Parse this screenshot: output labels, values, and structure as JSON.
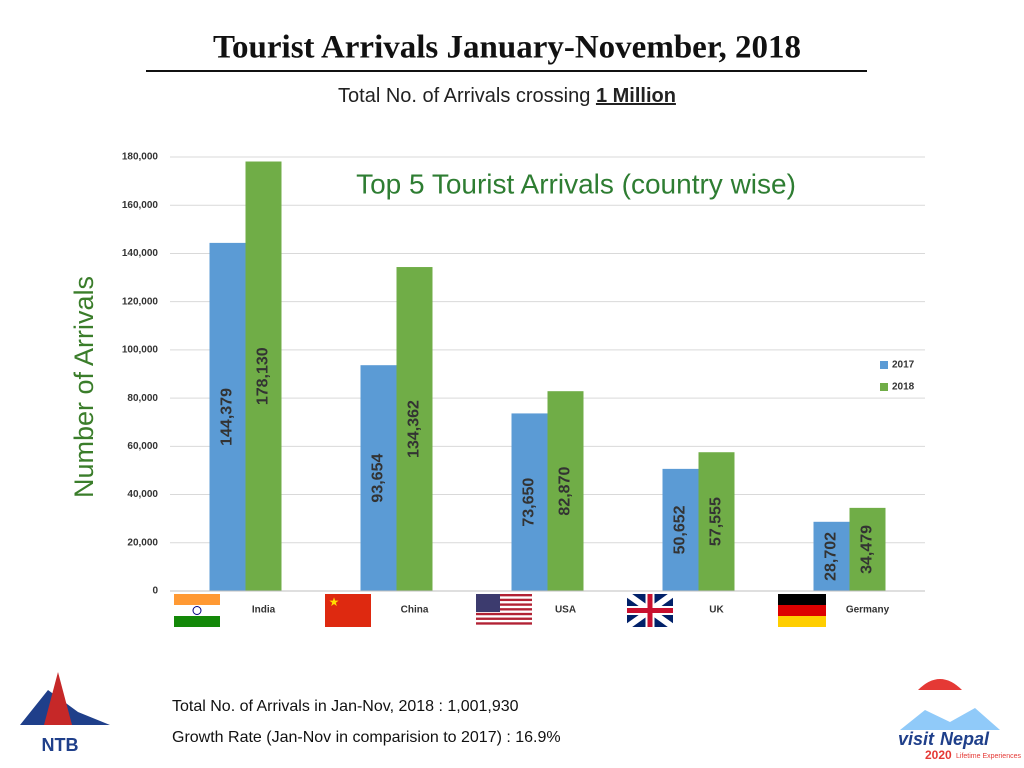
{
  "chart_data": {
    "type": "bar",
    "title": "Tourist Arrivals January-November, 2018",
    "subtitle": "Total No. of Arrivals crossing",
    "subtitle_emphasis": "1 Million",
    "chart_title": "Top 5 Tourist Arrivals (country wise)",
    "y_label": "Number of Arrivals",
    "categories": [
      "India",
      "China",
      "USA",
      "UK",
      "Germany"
    ],
    "series": [
      {
        "name": "2017",
        "color": "#5b9bd5",
        "values": [
          144379,
          93654,
          73650,
          50652,
          28702
        ],
        "value_labels": [
          "144,379",
          "93,654",
          "73,650",
          "50,652",
          "28,702"
        ]
      },
      {
        "name": "2018",
        "color": "#70ad47",
        "values": [
          178130,
          134362,
          82870,
          57555,
          34479
        ],
        "value_labels": [
          "178,130",
          "134,362",
          "82,870",
          "57,555",
          "34,479"
        ]
      }
    ],
    "ylim": [
      0,
      180000
    ],
    "yticks": [
      0,
      {
        "value": 20000,
        "label": "20,000"
      },
      {
        "value": 40000,
        "label": "40,000"
      },
      {
        "value": 60000,
        "label": "60,000"
      },
      {
        "value": 80000,
        "label": "80,000"
      },
      {
        "value": 100000,
        "label": "100,000"
      },
      {
        "value": 120000,
        "label": "120,000"
      },
      {
        "value": 140000,
        "label": "140,000"
      },
      {
        "value": 160000,
        "label": "160,000"
      },
      {
        "value": 180000,
        "label": "180,000"
      }
    ],
    "grid": true,
    "legend": "right",
    "footer": [
      "Total No. of Arrivals in Jan-Nov, 2018 : 1,001,930",
      "Growth Rate (Jan-Nov in comparision to 2017) : 16.9%"
    ],
    "logos": {
      "ntb": "NTB",
      "visit": "visit",
      "nepal": "Nepal",
      "year": "2020",
      "tagline": "Lifetime Experiences"
    }
  }
}
